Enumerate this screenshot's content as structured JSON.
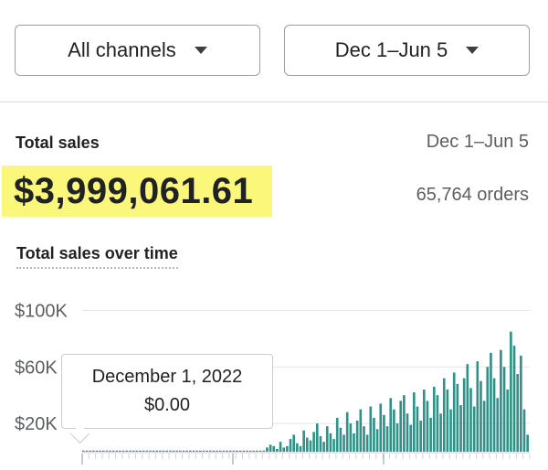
{
  "filters": {
    "channel": "All channels",
    "date_range": "Dec 1–Jun 5"
  },
  "summary": {
    "label": "Total sales",
    "date_range": "Dec 1–Jun 5",
    "total": "$3,999,061.61",
    "orders": "65,764 orders"
  },
  "chart_title": "Total sales over time",
  "tooltip": {
    "date": "December 1, 2022",
    "value": "$0.00"
  },
  "colors": {
    "bar": "#2f9188",
    "highlight": "#fbf77b"
  },
  "chart_data": {
    "type": "bar",
    "title": "Total sales over time",
    "y_ticks": [
      "$100K",
      "$60K",
      "$20K"
    ],
    "y_tick_values": [
      100000,
      60000,
      20000
    ],
    "ylim": [
      0,
      110000
    ],
    "values": [
      800,
      800,
      800,
      800,
      800,
      800,
      800,
      800,
      800,
      800,
      800,
      800,
      800,
      800,
      800,
      800,
      800,
      800,
      800,
      800,
      800,
      800,
      800,
      800,
      800,
      800,
      800,
      800,
      800,
      800,
      800,
      800,
      800,
      800,
      800,
      800,
      800,
      800,
      800,
      800,
      800,
      800,
      800,
      800,
      800,
      800,
      800,
      800,
      800,
      800,
      800,
      800,
      800,
      800,
      800,
      3000,
      5000,
      4000,
      2000,
      7000,
      3000,
      4000,
      9000,
      12000,
      6000,
      4000,
      15000,
      10000,
      8000,
      14000,
      20000,
      11000,
      7000,
      18000,
      13000,
      9000,
      24000,
      17000,
      12000,
      28000,
      20000,
      13000,
      22000,
      30000,
      18000,
      12000,
      32000,
      24000,
      16000,
      34000,
      26000,
      18000,
      38000,
      30000,
      20000,
      36000,
      40000,
      27000,
      19000,
      42000,
      32000,
      22000,
      44000,
      36000,
      24000,
      46000,
      40000,
      27000,
      52000,
      44000,
      30000,
      56000,
      48000,
      33000,
      52000,
      62000,
      45000,
      32000,
      64000,
      50000,
      36000,
      60000,
      70000,
      52000,
      38000,
      72000,
      60000,
      44000,
      85000,
      75000,
      55000,
      68000,
      30000,
      12000
    ]
  }
}
